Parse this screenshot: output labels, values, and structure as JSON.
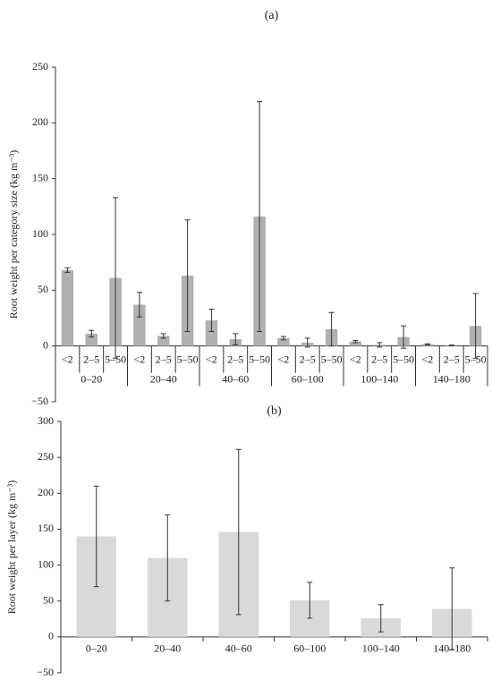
{
  "chart_data": [
    {
      "type": "bar",
      "title": "(a)",
      "y_label": "Root weight per category size (kg m⁻³)",
      "categories": [
        "0–20",
        "20–40",
        "40–60",
        "60–100",
        "100–140",
        "140–180"
      ],
      "subcategories": [
        "<2",
        "2–5",
        "5–50"
      ],
      "values": [
        [
          68,
          11,
          61
        ],
        [
          37,
          9,
          63
        ],
        [
          23,
          6,
          116
        ],
        [
          7,
          3,
          15
        ],
        [
          4,
          1,
          8
        ],
        [
          1.5,
          0.5,
          18
        ]
      ],
      "errors": [
        [
          2,
          3,
          72
        ],
        [
          11,
          2,
          50
        ],
        [
          10,
          5,
          103
        ],
        [
          1.5,
          4,
          15
        ],
        [
          1,
          2,
          10
        ],
        [
          0.5,
          0.3,
          29
        ]
      ],
      "color": "#b0b0b0",
      "ylim": [
        -50,
        250
      ],
      "yticks": [
        {
          "value": -50,
          "label": "−50"
        },
        0,
        50,
        100,
        150,
        200,
        250
      ]
    },
    {
      "type": "bar",
      "title": "(b)",
      "y_label": "Root weight per layer (kg m⁻³)",
      "categories": [
        "0–20",
        "20–40",
        "40–60",
        "60–100",
        "100–140",
        "140–180"
      ],
      "values": [
        140,
        110,
        146,
        51,
        26,
        39
      ],
      "errors": [
        70,
        60,
        115,
        25,
        19,
        57
      ],
      "color": "#d9d9d9",
      "ylim": [
        -50,
        300
      ],
      "yticks": [
        {
          "value": -50,
          "label": "−50"
        },
        0,
        50,
        100,
        150,
        200,
        250,
        300
      ]
    }
  ]
}
